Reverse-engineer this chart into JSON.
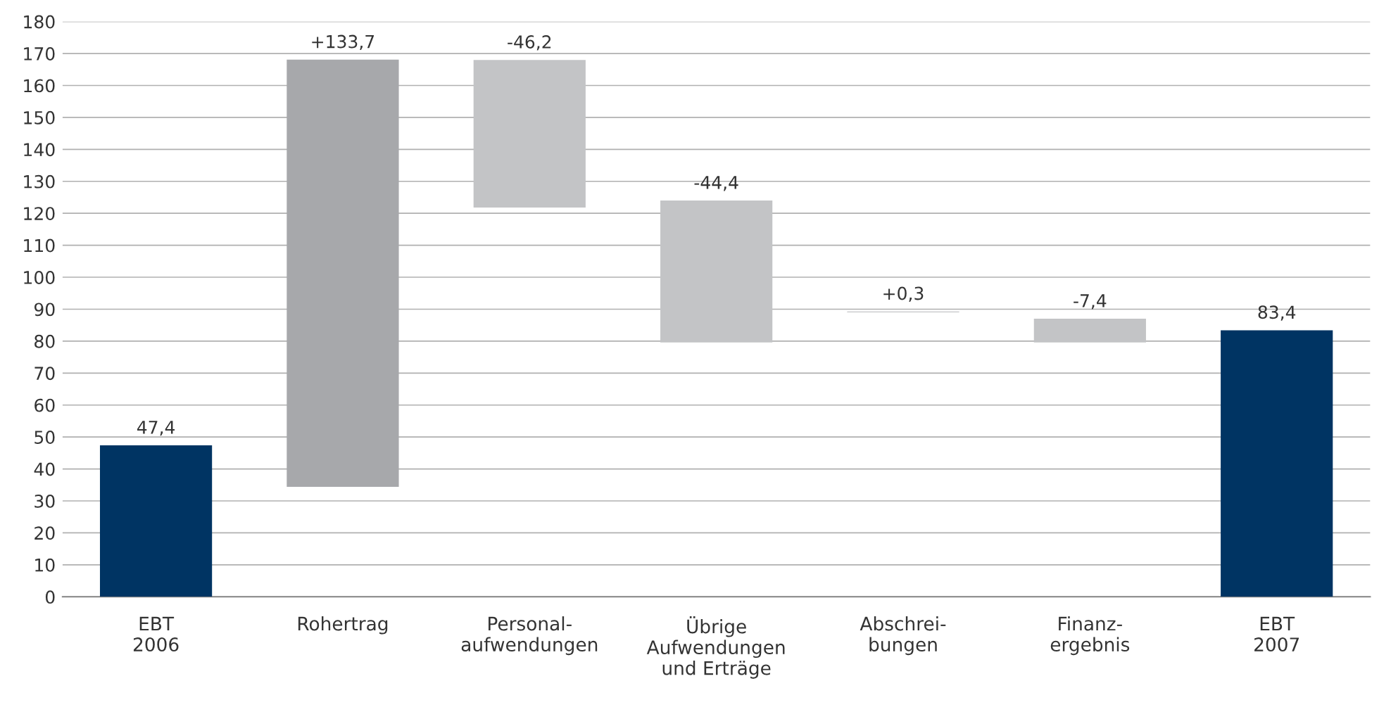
{
  "chart_data": {
    "type": "bar",
    "categories": [
      "EBT\n2006",
      "Rohertrag",
      "Personal-\naufwendungen",
      "Übrige\nAufwendungen\nund Erträge",
      "Abschrei-\nbungen",
      "Finanz-\nergebnis",
      "EBT\n2007"
    ],
    "values": [
      47.4,
      133.7,
      -46.2,
      -44.4,
      0.3,
      -7.4,
      83.4
    ],
    "base": [
      0,
      34.4,
      168,
      124,
      89,
      87,
      0
    ],
    "colors": [
      "#003463",
      "#a7a8ab",
      "#c3c4c6",
      "#c3c4c6",
      "#c3c4c6",
      "#c3c4c6",
      "#003463"
    ],
    "value_labels": [
      "47,4",
      "+133,7",
      "-46,2",
      "-44,4",
      "+0,3",
      "-7,4",
      "83,4"
    ],
    "ylim": [
      0,
      180
    ],
    "yticks": [
      0,
      10,
      20,
      30,
      40,
      50,
      60,
      70,
      80,
      90,
      100,
      110,
      120,
      130,
      140,
      150,
      160,
      170,
      180
    ],
    "grid": "y"
  }
}
